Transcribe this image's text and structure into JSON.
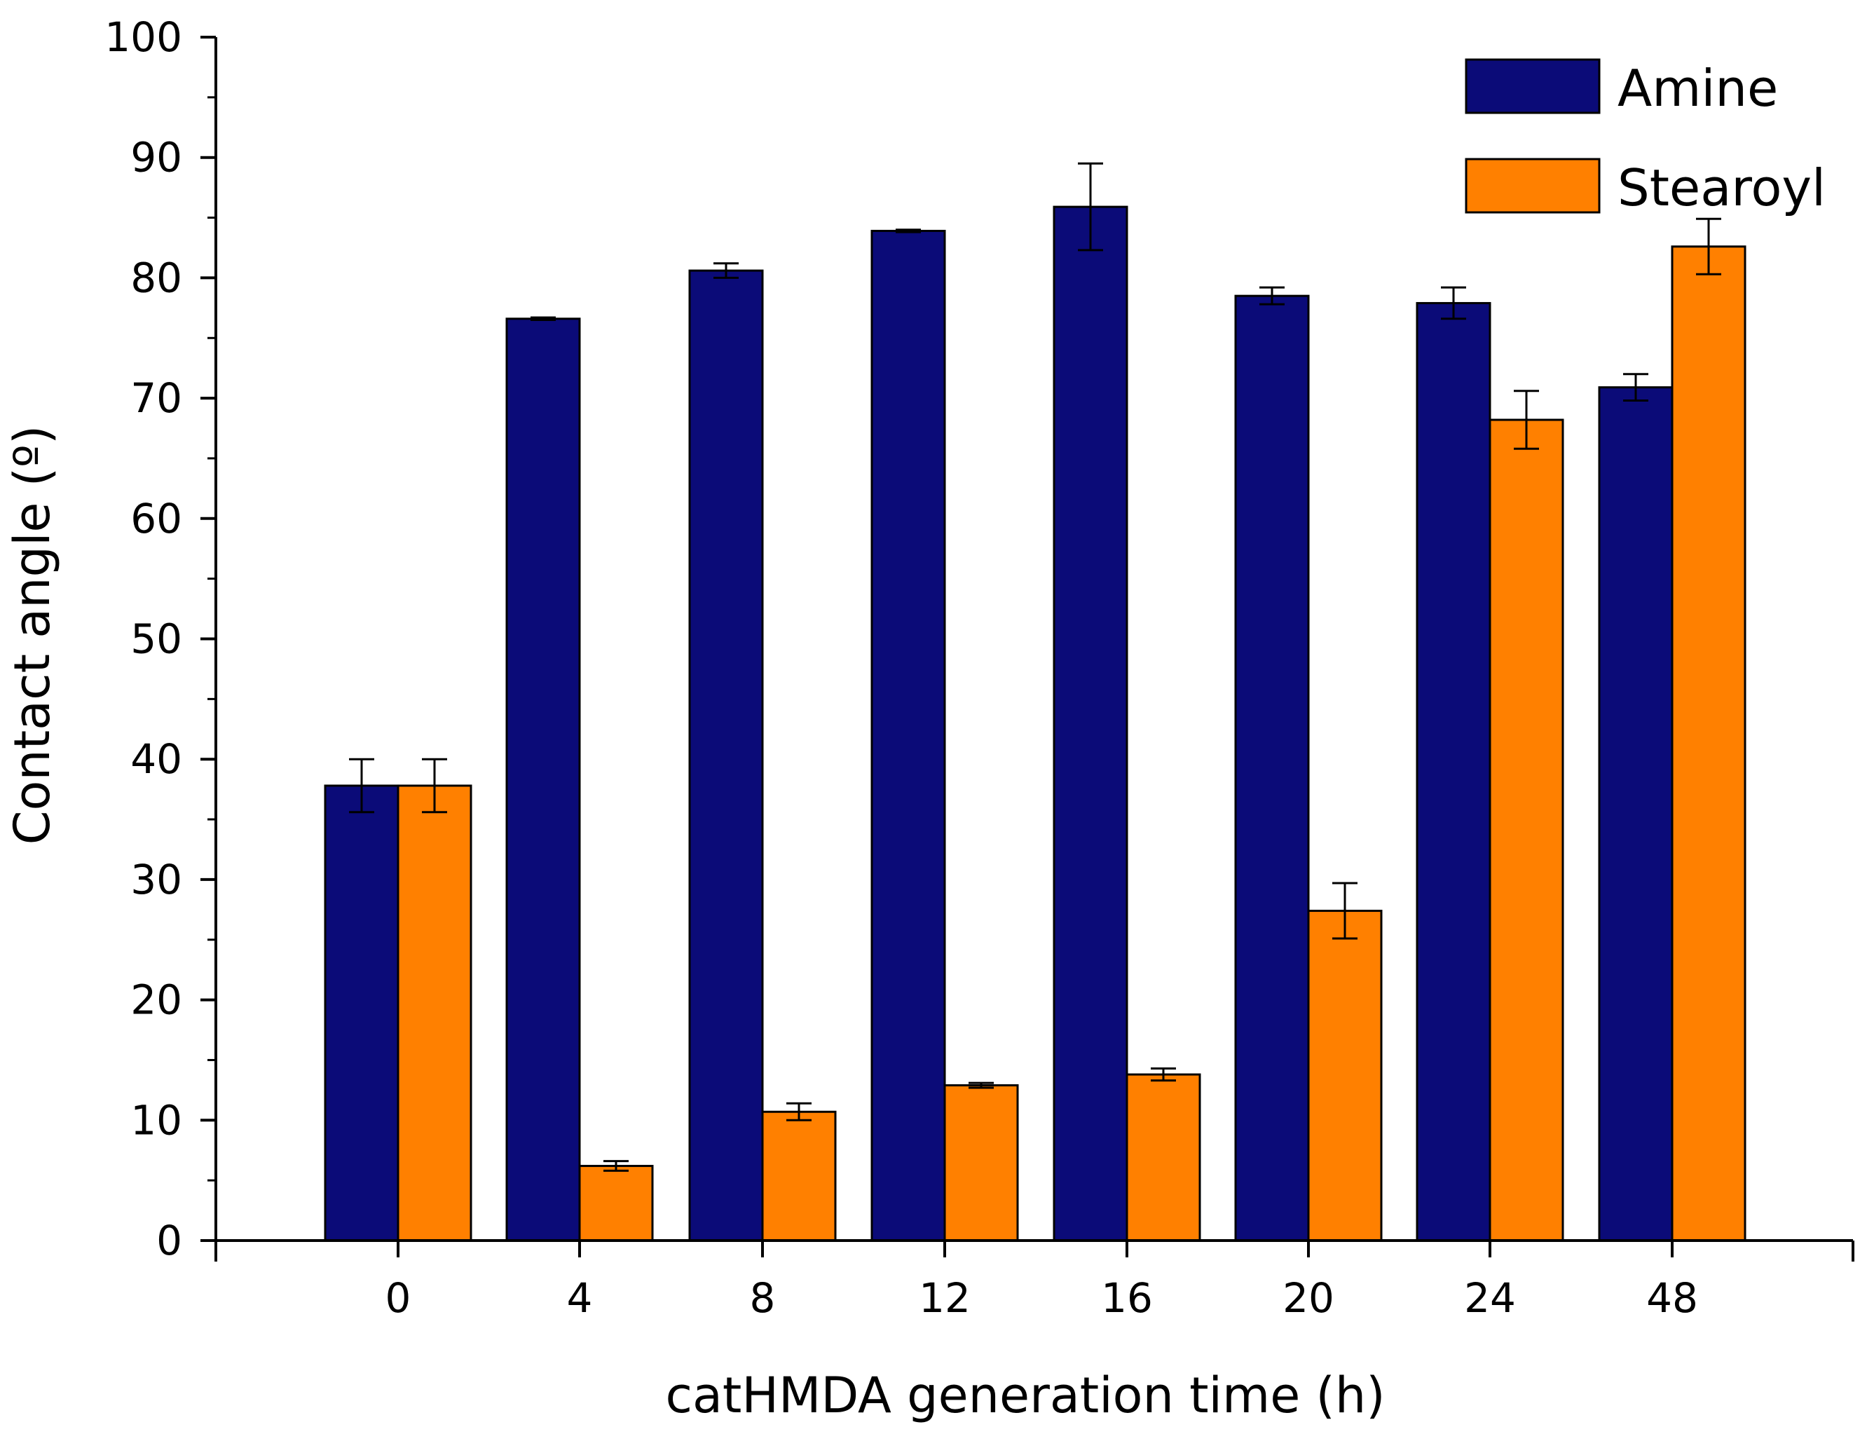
{
  "chart_data": {
    "type": "bar",
    "title": "",
    "xlabel": "catHMDA generation time (h)",
    "ylabel": "Contact angle (º)",
    "categories": [
      "0",
      "4",
      "8",
      "12",
      "16",
      "20",
      "24",
      "48"
    ],
    "ylim": [
      0,
      100
    ],
    "yticks": [
      0,
      10,
      20,
      30,
      40,
      50,
      60,
      70,
      80,
      90,
      100
    ],
    "grid": false,
    "legend_position": "top-right",
    "series": [
      {
        "name": "Amine",
        "color": "#0B0B78",
        "values": [
          37.8,
          76.6,
          80.6,
          83.9,
          85.9,
          78.5,
          77.9,
          70.9
        ],
        "errors": [
          2.2,
          0.1,
          0.6,
          0.1,
          3.6,
          0.7,
          1.3,
          1.1
        ]
      },
      {
        "name": "Stearoyl",
        "color": "#FF8000",
        "values": [
          37.8,
          6.2,
          10.7,
          12.9,
          13.8,
          27.4,
          68.2,
          82.6
        ],
        "errors": [
          2.2,
          0.4,
          0.7,
          0.2,
          0.5,
          2.3,
          2.4,
          2.3
        ]
      }
    ]
  }
}
